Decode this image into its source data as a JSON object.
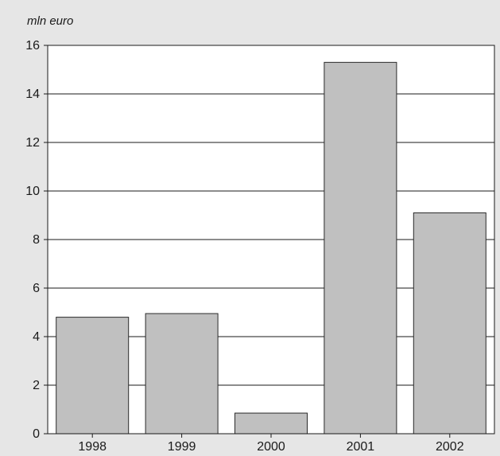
{
  "chart_data": {
    "type": "bar",
    "title": "",
    "ylabel": "mln euro",
    "xlabel": "",
    "categories": [
      "1998",
      "1999",
      "2000",
      "2001",
      "2002"
    ],
    "values": [
      4.8,
      4.95,
      0.85,
      15.3,
      9.1
    ],
    "ylim": [
      0,
      16
    ],
    "yticks": [
      0,
      2,
      4,
      6,
      8,
      10,
      12,
      14,
      16
    ],
    "grid": true,
    "colors": {
      "bar_fill": "#c0c0c0",
      "bar_stroke": "#2a2a2a",
      "plot_bg": "#ffffff",
      "page_bg": "#e6e6e6"
    }
  }
}
